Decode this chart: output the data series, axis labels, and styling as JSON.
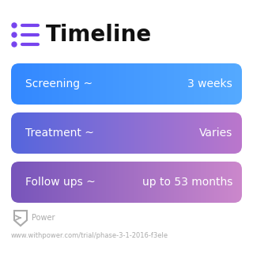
{
  "title": "Timeline",
  "title_fontsize": 20,
  "title_color": "#111111",
  "title_bold": true,
  "icon_color": "#7744ee",
  "bg_color": "#ffffff",
  "rows": [
    {
      "label": "Screening ~",
      "value": "3 weeks",
      "color_left": "#3388ff",
      "color_right": "#55aaff"
    },
    {
      "label": "Treatment ~",
      "value": "Varies",
      "color_left": "#5566dd",
      "color_right": "#bb77cc"
    },
    {
      "label": "Follow ups ~",
      "value": "up to 53 months",
      "color_left": "#7755bb",
      "color_right": "#cc88cc"
    }
  ],
  "footer_logo_text": "Power",
  "footer_url": "www.withpower.com/trial/phase-3-1-2016-f3ele",
  "footer_color": "#aaaaaa",
  "footer_fontsize": 7,
  "url_fontsize": 6
}
